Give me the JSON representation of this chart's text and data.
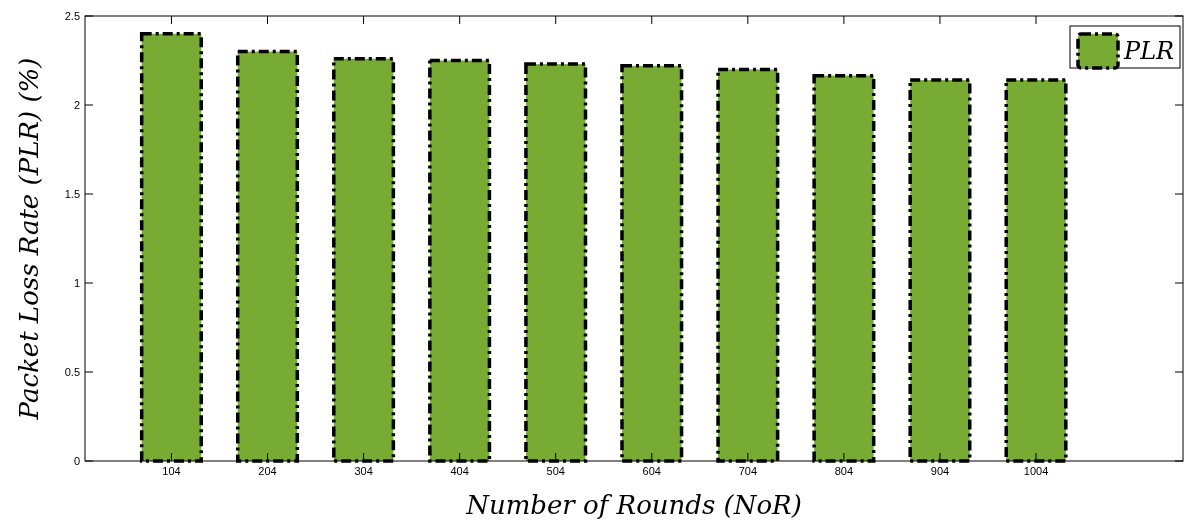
{
  "chart_data": {
    "type": "bar",
    "xlabel": "Number of Rounds (NoR)",
    "ylabel": "Packet Loss Rate (PLR) (%)",
    "x": [
      104,
      204,
      304,
      404,
      504,
      604,
      704,
      804,
      904,
      1004
    ],
    "xlim": [
      14,
      1157
    ],
    "xticks": [
      104,
      204,
      304,
      404,
      504,
      604,
      704,
      804,
      904,
      1004
    ],
    "ylim": [
      0,
      2.5
    ],
    "yticks": [
      0,
      0.5,
      1,
      1.5,
      2,
      2.5
    ],
    "series": [
      {
        "name": "PLR",
        "color": "#77ab33",
        "values": [
          2.4,
          2.3,
          2.26,
          2.25,
          2.23,
          2.22,
          2.2,
          2.165,
          2.14,
          2.14
        ]
      }
    ],
    "legend": "top right",
    "grid": false,
    "line_style": "dashed"
  }
}
